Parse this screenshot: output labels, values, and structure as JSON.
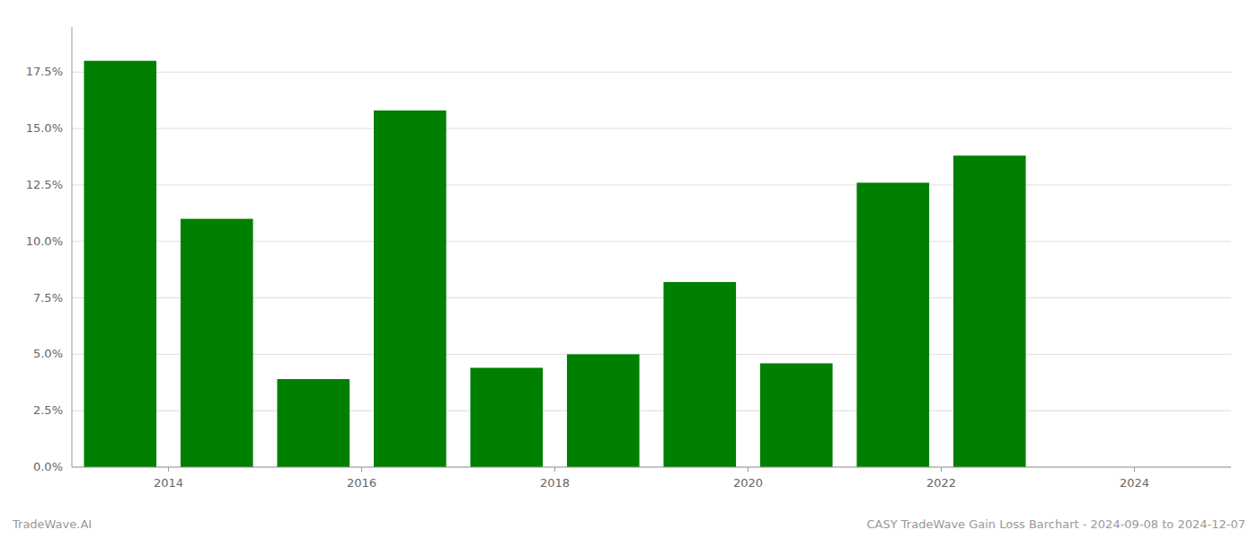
{
  "chart_data": {
    "type": "bar",
    "x": [
      2013,
      2014,
      2015,
      2016,
      2017,
      2018,
      2019,
      2020,
      2021,
      2022
    ],
    "values": [
      0.18,
      0.11,
      0.039,
      0.158,
      0.044,
      0.05,
      0.082,
      0.046,
      0.126,
      0.138
    ],
    "color": "#008000",
    "xlim": [
      2012.5,
      2024.5
    ],
    "xticks": [
      {
        "value": 2013.5,
        "label": "2014"
      },
      {
        "value": 2015.5,
        "label": "2016"
      },
      {
        "value": 2017.5,
        "label": "2018"
      },
      {
        "value": 2019.5,
        "label": "2020"
      },
      {
        "value": 2021.5,
        "label": "2022"
      },
      {
        "value": 2023.5,
        "label": "2024"
      }
    ],
    "ylim": [
      0,
      0.195
    ],
    "yticks": [
      {
        "value": 0.0,
        "label": "0.0%"
      },
      {
        "value": 0.025,
        "label": "2.5%"
      },
      {
        "value": 0.05,
        "label": "5.0%"
      },
      {
        "value": 0.075,
        "label": "7.5%"
      },
      {
        "value": 0.1,
        "label": "10.0%"
      },
      {
        "value": 0.125,
        "label": "12.5%"
      },
      {
        "value": 0.15,
        "label": "15.0%"
      },
      {
        "value": 0.175,
        "label": "17.5%"
      }
    ],
    "grid": true,
    "annotations": [
      "TradeWave.AI",
      "CASY TradeWave Gain Loss Barchart - 2024-09-08 to 2024-12-07"
    ]
  }
}
